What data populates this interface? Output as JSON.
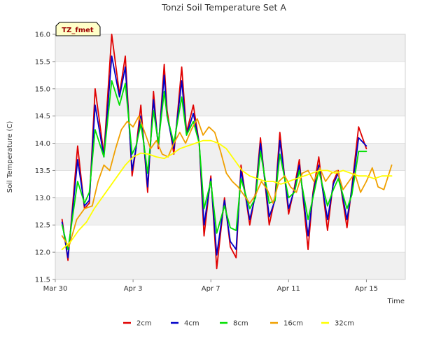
{
  "chart_data": {
    "type": "line",
    "title": "Tonzi Soil Temperature Set A",
    "xlabel": "Time",
    "ylabel": "Soil Temperature (C)",
    "badge": "TZ_fmet",
    "ylim": [
      11.5,
      16.0
    ],
    "xlim": [
      0,
      18
    ],
    "yticks": [
      11.5,
      12.0,
      12.5,
      13.0,
      13.5,
      14.0,
      14.5,
      15.0,
      15.5,
      16.0
    ],
    "ytick_labels": [
      "11.5",
      "12.0",
      "12.5",
      "13.0",
      "13.5",
      "14.0",
      "14.5",
      "15.0",
      "15.5",
      "16.0"
    ],
    "xticks": [
      0,
      4,
      8,
      12,
      16
    ],
    "xtick_labels": [
      "Mar 30",
      "Apr 3",
      "Apr 7",
      "Apr 11",
      "Apr 15"
    ],
    "legend_position": "bottom-center",
    "x_units": "days since Mar 30",
    "series": [
      {
        "name": "2cm",
        "color": "#e00000",
        "x": [
          0.35,
          0.65,
          1.15,
          1.5,
          1.75,
          2.05,
          2.5,
          2.9,
          3.3,
          3.6,
          3.95,
          4.15,
          4.4,
          4.55,
          4.75,
          5.05,
          5.3,
          5.6,
          5.75,
          6.1,
          6.5,
          6.75,
          7.1,
          7.4,
          7.65,
          8.0,
          8.3,
          8.7,
          9.0,
          9.3,
          9.55,
          10.0,
          10.3,
          10.55,
          11.0,
          11.3,
          11.55,
          12.0,
          12.3,
          12.55,
          13.0,
          13.25,
          13.55,
          14.0,
          14.3,
          14.55,
          15.0,
          15.25,
          15.6,
          16.0,
          16.3,
          16.6,
          17.0,
          17.3
        ],
        "y": [
          12.6,
          11.85,
          13.95,
          12.8,
          12.9,
          15.0,
          13.8,
          16.0,
          14.9,
          15.6,
          13.4,
          13.9,
          14.7,
          14.0,
          13.1,
          14.95,
          13.9,
          15.45,
          14.6,
          13.8,
          15.4,
          14.2,
          14.7,
          14.0,
          12.3,
          13.4,
          11.7,
          13.0,
          12.1,
          11.9,
          13.6,
          12.5,
          13.1,
          14.1,
          12.5,
          13.0,
          14.2,
          12.7,
          13.2,
          13.7,
          12.05,
          13.1,
          13.75,
          12.4,
          13.3,
          13.5,
          12.45,
          13.2,
          14.3,
          13.9,
          null,
          null,
          null,
          null
        ]
      },
      {
        "name": "4cm",
        "color": "#0000c8",
        "x": [
          0.35,
          0.65,
          1.15,
          1.5,
          1.75,
          2.05,
          2.5,
          2.9,
          3.3,
          3.6,
          3.95,
          4.15,
          4.4,
          4.55,
          4.75,
          5.05,
          5.3,
          5.6,
          5.75,
          6.1,
          6.5,
          6.75,
          7.1,
          7.4,
          7.65,
          8.0,
          8.3,
          8.7,
          9.0,
          9.3,
          9.55,
          10.0,
          10.3,
          10.55,
          11.0,
          11.3,
          11.55,
          12.0,
          12.3,
          12.55,
          13.0,
          13.25,
          13.55,
          14.0,
          14.3,
          14.55,
          15.0,
          15.25,
          15.6,
          16.0,
          16.3,
          16.6,
          17.0,
          17.3
        ],
        "y": [
          12.55,
          11.9,
          13.7,
          12.85,
          12.95,
          14.7,
          13.75,
          15.6,
          14.85,
          15.4,
          13.5,
          13.9,
          14.5,
          14.0,
          13.2,
          14.8,
          13.95,
          15.25,
          14.5,
          13.9,
          15.15,
          14.15,
          14.55,
          14.0,
          12.5,
          13.35,
          11.95,
          12.95,
          12.2,
          12.05,
          13.5,
          12.6,
          13.05,
          14.0,
          12.65,
          12.95,
          14.05,
          12.8,
          13.15,
          13.6,
          12.3,
          13.05,
          13.6,
          12.6,
          13.25,
          13.45,
          12.6,
          13.15,
          14.1,
          13.95,
          null,
          null,
          null,
          null
        ]
      },
      {
        "name": "8cm",
        "color": "#00e000",
        "x": [
          0.35,
          0.65,
          1.15,
          1.5,
          1.75,
          2.05,
          2.5,
          2.9,
          3.3,
          3.6,
          3.95,
          4.15,
          4.4,
          4.55,
          4.75,
          5.05,
          5.3,
          5.6,
          5.75,
          6.1,
          6.5,
          6.75,
          7.1,
          7.4,
          7.65,
          8.0,
          8.3,
          8.7,
          9.0,
          9.3,
          9.55,
          10.0,
          10.3,
          10.55,
          11.0,
          11.3,
          11.55,
          12.0,
          12.3,
          12.55,
          13.0,
          13.25,
          13.55,
          14.0,
          14.3,
          14.55,
          15.0,
          15.25,
          15.6,
          16.0,
          16.3,
          16.6,
          17.0,
          17.3
        ],
        "y": [
          12.5,
          12.05,
          13.3,
          12.9,
          13.1,
          14.25,
          13.75,
          15.15,
          14.7,
          15.1,
          13.8,
          13.95,
          14.35,
          14.0,
          13.45,
          14.6,
          14.0,
          14.95,
          14.5,
          14.0,
          14.85,
          14.15,
          14.4,
          14.0,
          12.8,
          13.3,
          12.35,
          12.85,
          12.45,
          12.4,
          13.35,
          12.8,
          13.0,
          13.85,
          12.9,
          12.95,
          13.8,
          13.0,
          13.1,
          13.5,
          12.6,
          13.0,
          13.5,
          12.85,
          13.15,
          13.35,
          12.8,
          13.05,
          13.85,
          13.85,
          null,
          null,
          null,
          null
        ]
      },
      {
        "name": "16cm",
        "color": "#f0a000",
        "x": [
          0.35,
          0.7,
          1.1,
          1.5,
          1.9,
          2.2,
          2.5,
          2.8,
          3.1,
          3.4,
          3.7,
          4.0,
          4.3,
          4.6,
          4.9,
          5.2,
          5.5,
          5.8,
          6.1,
          6.4,
          6.7,
          7.0,
          7.3,
          7.6,
          7.9,
          8.2,
          8.5,
          8.8,
          9.1,
          9.4,
          9.7,
          10.0,
          10.3,
          10.6,
          10.9,
          11.2,
          11.5,
          11.8,
          12.1,
          12.4,
          12.7,
          13.0,
          13.3,
          13.6,
          13.9,
          14.2,
          14.5,
          14.8,
          15.1,
          15.4,
          15.7,
          16.0,
          16.3,
          16.6,
          16.9,
          17.3
        ],
        "y": [
          12.3,
          12.1,
          12.6,
          12.8,
          12.85,
          13.3,
          13.6,
          13.5,
          13.9,
          14.25,
          14.4,
          14.3,
          14.5,
          14.2,
          13.9,
          14.05,
          13.8,
          13.75,
          14.0,
          14.2,
          14.0,
          14.25,
          14.45,
          14.15,
          14.3,
          14.2,
          13.85,
          13.45,
          13.3,
          13.2,
          13.05,
          12.9,
          13.05,
          13.3,
          13.15,
          12.9,
          13.3,
          13.4,
          13.2,
          13.1,
          13.45,
          13.5,
          13.3,
          13.55,
          13.3,
          13.45,
          13.5,
          13.15,
          13.3,
          13.45,
          13.1,
          13.3,
          13.55,
          13.2,
          13.15,
          13.6
        ]
      },
      {
        "name": "32cm",
        "color": "#ffff00",
        "x": [
          0.35,
          0.8,
          1.2,
          1.6,
          2.0,
          2.4,
          2.8,
          3.2,
          3.6,
          4.0,
          4.4,
          4.8,
          5.2,
          5.6,
          6.0,
          6.4,
          6.8,
          7.2,
          7.6,
          8.0,
          8.4,
          8.8,
          9.2,
          9.6,
          10.0,
          10.4,
          10.8,
          11.2,
          11.6,
          12.0,
          12.4,
          12.8,
          13.2,
          13.6,
          14.0,
          14.4,
          14.8,
          15.2,
          15.6,
          16.0,
          16.4,
          16.8,
          17.3
        ],
        "y": [
          12.05,
          12.2,
          12.4,
          12.55,
          12.8,
          13.0,
          13.2,
          13.4,
          13.6,
          13.75,
          13.82,
          13.8,
          13.75,
          13.72,
          13.8,
          13.9,
          13.95,
          14.0,
          14.05,
          14.05,
          14.0,
          13.9,
          13.7,
          13.5,
          13.4,
          13.35,
          13.3,
          13.3,
          13.25,
          13.3,
          13.35,
          13.4,
          13.45,
          13.5,
          13.5,
          13.45,
          13.5,
          13.45,
          13.4,
          13.4,
          13.35,
          13.4,
          13.4
        ]
      }
    ]
  }
}
